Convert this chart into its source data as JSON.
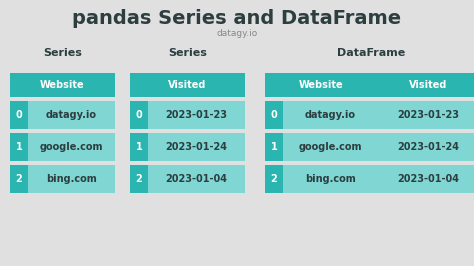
{
  "title": "pandas Series and DataFrame",
  "subtitle": "datagy.io",
  "bg_color": "#e0e0e0",
  "teal_dark": "#2ab5b0",
  "teal_light": "#7fd6d3",
  "text_dark": "#2c3e40",
  "text_white": "#ffffff",
  "rows": [
    [
      "0",
      "datagy.io"
    ],
    [
      "1",
      "google.com"
    ],
    [
      "2",
      "bing.com"
    ]
  ],
  "dates": [
    "2023-01-23",
    "2023-01-24",
    "2023-01-04"
  ],
  "title_fontsize": 14,
  "subtitle_fontsize": 6.5,
  "label_fontsize": 8,
  "cell_fontsize": 7
}
